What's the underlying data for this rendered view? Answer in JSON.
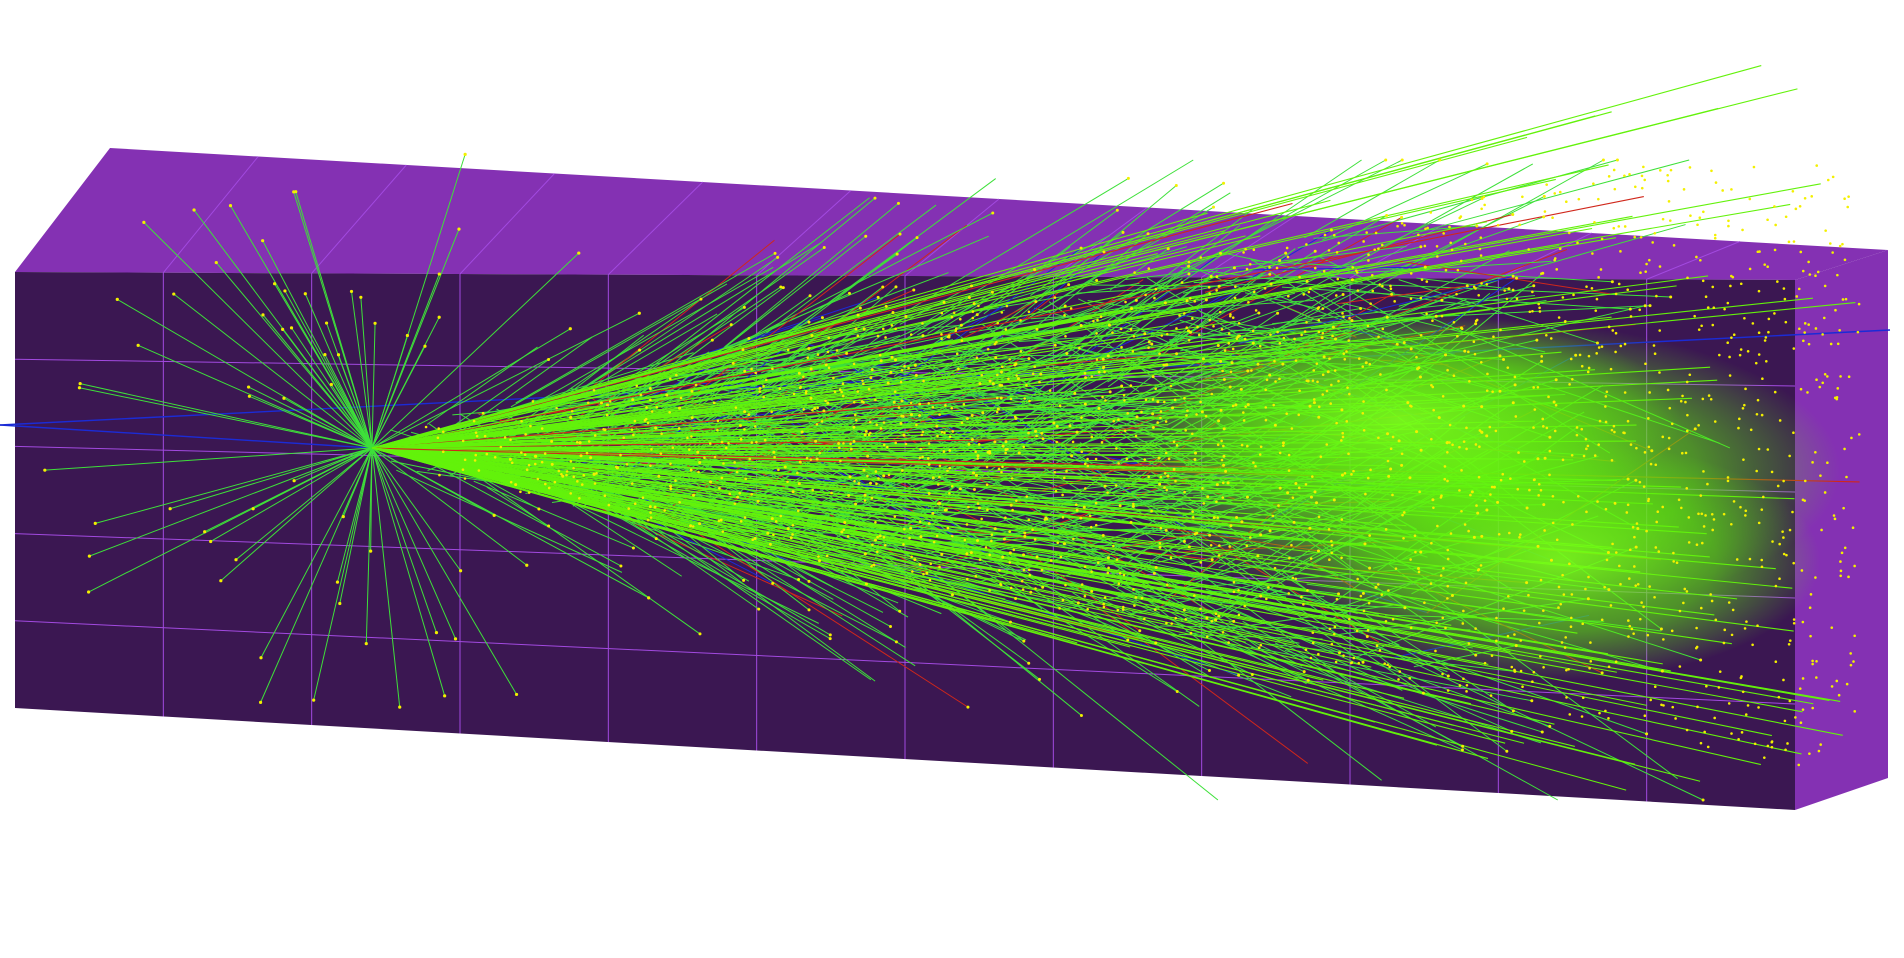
{
  "scene": {
    "background_color": "#ffffff",
    "box": {
      "front_face_color": "#3b1752",
      "top_face_color": "#8431b3",
      "side_face_color": "#8431b3",
      "grid_line_color": "#a24ae0"
    },
    "tracks": {
      "primary_track_color": "#1b2bd6",
      "gamma_track_color": "#3ee03a",
      "dense_gamma_color": "#63f20b",
      "charged_track_color": "#d0271b",
      "step_point_color": "#f3f000"
    }
  }
}
